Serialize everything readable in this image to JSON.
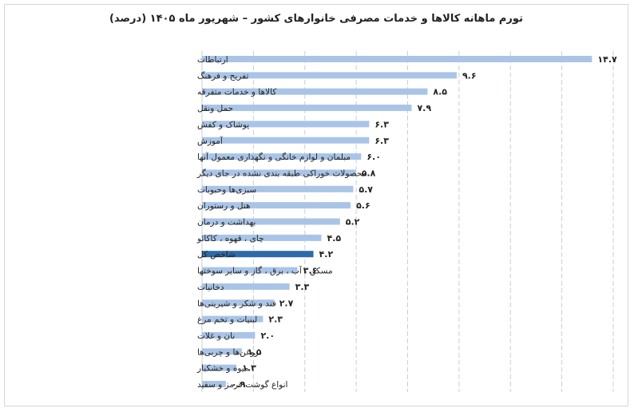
{
  "chart_data": {
    "type": "bar",
    "orientation": "horizontal",
    "title": "تورم ماهانه کالاها و خدمات مصرفی خانوارهای کشور – شهریور ماه ۱۴۰۵ (درصد)",
    "xlabel": "",
    "ylabel": "",
    "xlim": [
      0,
      15.5
    ],
    "grid": true,
    "legend": "none",
    "categories": [
      "ارتباطات",
      "تفریح و فرهنگ",
      "کالاها و خدمات متفرقه",
      "حمل ونقل",
      "پوشاک و کفش",
      "آموزش",
      "مبلمان و لوازم خانگی و نگهداری معمول آنها",
      "محصولات خوراکی طبقه بندی نشده در جای دیگر",
      "سبزی‌ها وحبوبات",
      "هتل و رستوران",
      "بهداشت و درمان",
      "چای ، قهوه ، کاکائو",
      "شاخص کل",
      "مسکن ، آب ، برق ، گاز و سایر سوختها",
      "دخانیات",
      "قند و شکر و شیرینی‌ها",
      "لبنیات و تخم مرغ",
      "نان و غلات",
      "روغن‌ها و چربی‌ها",
      "میوه و خشکبار",
      "انواع گوشت قرمز و سفید"
    ],
    "values": [
      14.7,
      9.6,
      8.5,
      7.9,
      6.3,
      6.3,
      6.0,
      5.8,
      5.7,
      5.6,
      5.2,
      4.5,
      4.2,
      3.6,
      3.3,
      2.7,
      2.3,
      2.0,
      1.5,
      1.3,
      0.9
    ],
    "value_labels": [
      "۱۴.۷",
      "۹.۶",
      "۸.۵",
      "۷.۹",
      "۶.۳",
      "۶.۳",
      "۶.۰",
      "۵.۸",
      "۵.۷",
      "۵.۶",
      "۵.۲",
      "۴.۵",
      "۴.۲",
      "۳.۶",
      "۳.۳",
      "۲.۷",
      "۲.۳",
      "۲.۰",
      "۱.۵",
      "۱.۳",
      "۰.۹"
    ],
    "highlight_category": "شاخص کل",
    "colors": {
      "bar": "#a9c4e6",
      "highlight": "#2e6aa8",
      "grid": "#c8ced8"
    }
  }
}
